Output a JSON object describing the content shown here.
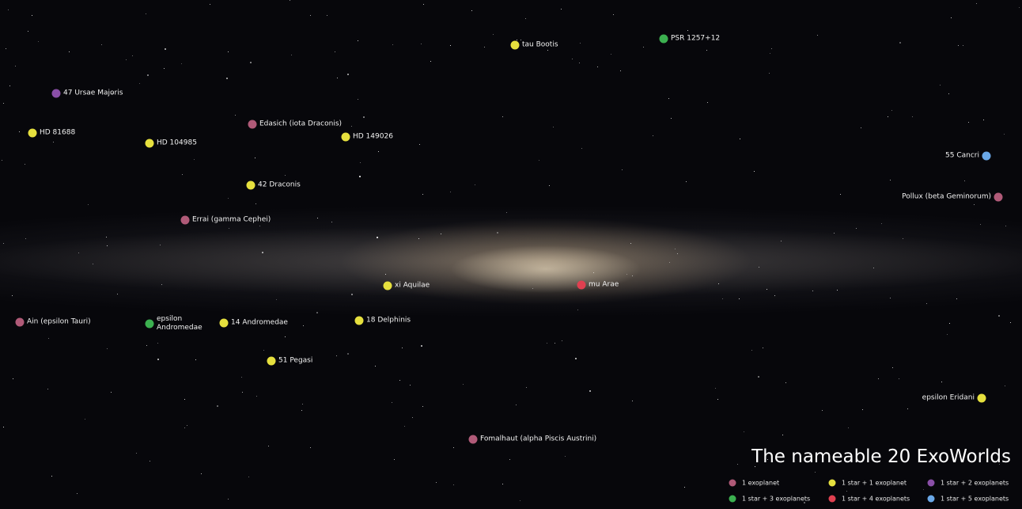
{
  "title": "The nameable 20 ExoWorlds",
  "legend": [
    {
      "label": "1 exoplanet",
      "color": "#b05a78"
    },
    {
      "label": "1 star + 1 exoplanet",
      "color": "#e6e03e"
    },
    {
      "label": "1 star + 2 exoplanets",
      "color": "#8a4fa8"
    },
    {
      "label": "1 star + 3 exoplanets",
      "color": "#3cb050"
    },
    {
      "label": "1 star + 4 exoplanets",
      "color": "#e04050"
    },
    {
      "label": "1 star + 5 exoplanets",
      "color": "#6aa8e8"
    }
  ],
  "stars": [
    {
      "label": "tau Bootis"
    },
    {
      "label": "PSR 1257+12"
    },
    {
      "label": "47 Ursae Majoris"
    },
    {
      "label": "HD 81688"
    },
    {
      "label": "HD 104985"
    },
    {
      "label": "Edasich (iota Draconis)"
    },
    {
      "label": "HD 149026"
    },
    {
      "label": "55 Cancri"
    },
    {
      "label": "42 Draconis"
    },
    {
      "label": "Pollux (beta Geminorum)"
    },
    {
      "label": "Errai (gamma Cephei)"
    },
    {
      "label": "xi Aquilae"
    },
    {
      "label": "mu Arae"
    },
    {
      "label": "Ain (epsilon Tauri)"
    },
    {
      "label": "epsilon Andromedae"
    },
    {
      "label": "14 Andromedae"
    },
    {
      "label": "18 Delphinis"
    },
    {
      "label": "51 Pegasi"
    },
    {
      "label": "epsilon Eridani"
    },
    {
      "label": "Fomalhaut (alpha Piscis Austrini)"
    }
  ]
}
